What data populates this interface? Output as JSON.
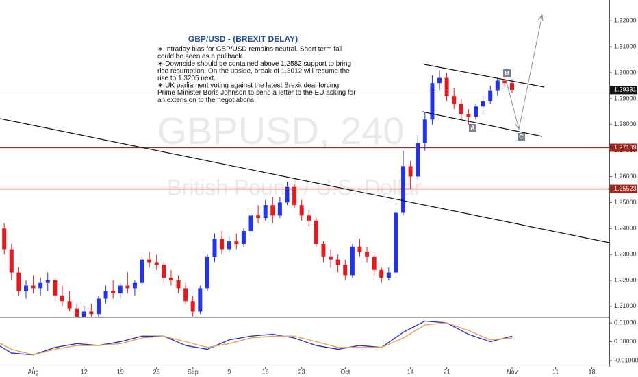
{
  "chart_data": [
    {
      "type": "candlestick",
      "title": "GBP/USD - (BREXIT DELAY)",
      "notes": [
        "∗ Intraday bias for GBP/USD remains neutral. Short term fall",
        "could be seen as a pullback.",
        "∗ Downside should be contained above 1.2582 support to bring",
        "rise resumption. On the upside, break of 1.3012 will resume the",
        "rise to  1.3205 next.",
        "∗ UK parliament voting against the latest Brexit deal forcing",
        "Prime Minister Boris Johnson to send a letter to the EU asking for",
        "an extension to the negotiations."
      ],
      "watermark": [
        "GBPUSD, 240",
        "British Pound / U.S. Dollar"
      ],
      "markers": [
        "A",
        "B",
        "C"
      ],
      "up_color": "#2233ee",
      "down_color": "#e8191e",
      "xlim": [
        1.415,
        85.4
      ],
      "ylim": [
        1.206,
        1.328
      ],
      "yticks": [
        {
          "value": 1.32,
          "label": "1.32000"
        },
        {
          "value": 1.31,
          "label": "1.31000"
        },
        {
          "value": 1.3,
          "label": "1.30000"
        },
        {
          "value": 1.29,
          "label": "1.29000"
        },
        {
          "value": 1.28,
          "label": "1.28000"
        },
        {
          "value": 1.27,
          "label": "1.27000"
        },
        {
          "value": 1.26,
          "label": "1.26000"
        },
        {
          "value": 1.25,
          "label": "1.25000"
        },
        {
          "value": 1.24,
          "label": "1.24000"
        },
        {
          "value": 1.23,
          "label": "1.23000"
        },
        {
          "value": 1.22,
          "label": "1.22000"
        },
        {
          "value": 1.21,
          "label": "1.21000"
        }
      ],
      "xticks": [
        {
          "value": 6,
          "label": "Aug"
        },
        {
          "value": 13,
          "label": "12"
        },
        {
          "value": 18,
          "label": "19"
        },
        {
          "value": 23,
          "label": "26"
        },
        {
          "value": 28,
          "label": "Sep"
        },
        {
          "value": 33,
          "label": "9"
        },
        {
          "value": 38,
          "label": "16"
        },
        {
          "value": 43,
          "label": "23"
        },
        {
          "value": 49,
          "label": "Oct"
        },
        {
          "value": 58,
          "label": "14"
        },
        {
          "value": 63,
          "label": "21"
        },
        {
          "value": 72,
          "label": "Nov"
        },
        {
          "value": 78,
          "label": "11"
        },
        {
          "value": 83,
          "label": "18"
        }
      ],
      "price_lines": [
        1.27109,
        1.25523
      ],
      "price_line_color": "#a3261c",
      "last_price": 1.29331,
      "ohlc": [
        [
          1.25,
          1.2515,
          1.246,
          1.247
        ],
        [
          1.247,
          1.248,
          1.238,
          1.24
        ],
        [
          1.24,
          1.242,
          1.23,
          1.232
        ],
        [
          1.232,
          1.234,
          1.22,
          1.223
        ],
        [
          1.223,
          1.225,
          1.214,
          1.216
        ],
        [
          1.216,
          1.22,
          1.213,
          1.218
        ],
        [
          1.218,
          1.222,
          1.215,
          1.217
        ],
        [
          1.217,
          1.221,
          1.214,
          1.219
        ],
        [
          1.219,
          1.223,
          1.216,
          1.22
        ],
        [
          1.22,
          1.221,
          1.212,
          1.214
        ],
        [
          1.214,
          1.218,
          1.21,
          1.212
        ],
        [
          1.212,
          1.216,
          1.208,
          1.209
        ],
        [
          1.209,
          1.211,
          1.204,
          1.206
        ],
        [
          1.206,
          1.21,
          1.204,
          1.208
        ],
        [
          1.208,
          1.211,
          1.205,
          1.207
        ],
        [
          1.207,
          1.214,
          1.206,
          1.213
        ],
        [
          1.213,
          1.218,
          1.211,
          1.216
        ],
        [
          1.216,
          1.22,
          1.213,
          1.215
        ],
        [
          1.215,
          1.219,
          1.213,
          1.218
        ],
        [
          1.218,
          1.223,
          1.215,
          1.217
        ],
        [
          1.217,
          1.22,
          1.214,
          1.219
        ],
        [
          1.219,
          1.229,
          1.218,
          1.228
        ],
        [
          1.228,
          1.231,
          1.225,
          1.227
        ],
        [
          1.227,
          1.23,
          1.224,
          1.226
        ],
        [
          1.226,
          1.227,
          1.219,
          1.221
        ],
        [
          1.221,
          1.224,
          1.218,
          1.22
        ],
        [
          1.22,
          1.222,
          1.215,
          1.217
        ],
        [
          1.217,
          1.219,
          1.211,
          1.212
        ],
        [
          1.212,
          1.214,
          1.206,
          1.208
        ],
        [
          1.208,
          1.218,
          1.207,
          1.217
        ],
        [
          1.217,
          1.23,
          1.216,
          1.229
        ],
        [
          1.229,
          1.238,
          1.227,
          1.236
        ],
        [
          1.236,
          1.239,
          1.23,
          1.232
        ],
        [
          1.232,
          1.237,
          1.231,
          1.235
        ],
        [
          1.235,
          1.238,
          1.232,
          1.234
        ],
        [
          1.234,
          1.24,
          1.233,
          1.239
        ],
        [
          1.239,
          1.246,
          1.238,
          1.245
        ],
        [
          1.245,
          1.249,
          1.242,
          1.244
        ],
        [
          1.244,
          1.251,
          1.243,
          1.249
        ],
        [
          1.249,
          1.252,
          1.242,
          1.245
        ],
        [
          1.245,
          1.252,
          1.244,
          1.25
        ],
        [
          1.25,
          1.258,
          1.249,
          1.256
        ],
        [
          1.256,
          1.257,
          1.248,
          1.249
        ],
        [
          1.249,
          1.251,
          1.243,
          1.245
        ],
        [
          1.245,
          1.247,
          1.241,
          1.243
        ],
        [
          1.243,
          1.244,
          1.233,
          1.234
        ],
        [
          1.234,
          1.235,
          1.227,
          1.229
        ],
        [
          1.229,
          1.232,
          1.225,
          1.228
        ],
        [
          1.228,
          1.23,
          1.223,
          1.226
        ],
        [
          1.226,
          1.228,
          1.22,
          1.222
        ],
        [
          1.222,
          1.234,
          1.221,
          1.233
        ],
        [
          1.233,
          1.236,
          1.229,
          1.231
        ],
        [
          1.231,
          1.233,
          1.227,
          1.229
        ],
        [
          1.229,
          1.23,
          1.222,
          1.224
        ],
        [
          1.224,
          1.225,
          1.219,
          1.221
        ],
        [
          1.221,
          1.225,
          1.22,
          1.223
        ],
        [
          1.223,
          1.248,
          1.222,
          1.246
        ],
        [
          1.246,
          1.27,
          1.245,
          1.264
        ],
        [
          1.264,
          1.266,
          1.255,
          1.26
        ],
        [
          1.26,
          1.276,
          1.259,
          1.273
        ],
        [
          1.273,
          1.285,
          1.27,
          1.282
        ],
        [
          1.282,
          1.299,
          1.28,
          1.296
        ],
        [
          1.296,
          1.301,
          1.293,
          1.298
        ],
        [
          1.298,
          1.3,
          1.289,
          1.291
        ],
        [
          1.291,
          1.294,
          1.286,
          1.288
        ],
        [
          1.288,
          1.29,
          1.282,
          1.284
        ],
        [
          1.284,
          1.286,
          1.28,
          1.283
        ],
        [
          1.283,
          1.288,
          1.282,
          1.287
        ],
        [
          1.287,
          1.291,
          1.284,
          1.289
        ],
        [
          1.289,
          1.295,
          1.288,
          1.293
        ],
        [
          1.293,
          1.298,
          1.291,
          1.297
        ],
        [
          1.297,
          1.2985,
          1.294,
          1.296
        ],
        [
          1.296,
          1.2975,
          1.292,
          1.2933
        ]
      ]
    },
    {
      "type": "line",
      "xlim": [
        1.415,
        85.4
      ],
      "ylim": [
        -0.0133,
        0.0126
      ],
      "yticks": [
        {
          "value": 0.01,
          "label": "0.01000"
        },
        {
          "value": 0,
          "label": "0.00000"
        },
        {
          "value": -0.01,
          "label": "-0.01000"
        }
      ],
      "x": [
        0,
        3,
        6,
        9,
        12,
        15,
        18,
        21,
        24,
        27,
        30,
        33,
        36,
        39,
        42,
        45,
        48,
        51,
        54,
        57,
        60,
        63,
        66,
        69,
        72
      ],
      "series": [
        {
          "color": "#2b36c8",
          "values": [
            0.001,
            -0.006,
            -0.007,
            -0.003,
            -0.001,
            -0.002,
            0.0,
            0.003,
            0.003,
            -0.002,
            -0.004,
            0.001,
            0.003,
            0.004,
            0.002,
            -0.002,
            -0.004,
            -0.002,
            -0.003,
            0.005,
            0.011,
            0.01,
            0.004,
            0.0,
            0.003
          ]
        },
        {
          "color": "#f0a050",
          "values": [
            0.002,
            -0.004,
            -0.007,
            -0.004,
            -0.002,
            -0.002,
            -0.001,
            0.002,
            0.003,
            0.0,
            -0.003,
            -0.001,
            0.002,
            0.003,
            0.003,
            0.0,
            -0.003,
            -0.003,
            -0.003,
            0.002,
            0.009,
            0.01,
            0.006,
            0.001,
            0.002
          ]
        }
      ]
    }
  ]
}
